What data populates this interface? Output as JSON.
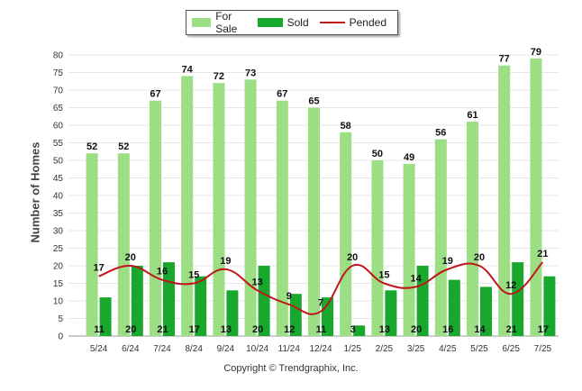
{
  "chart_data": {
    "type": "bar",
    "categories": [
      "5/24",
      "6/24",
      "7/24",
      "8/24",
      "9/24",
      "10/24",
      "11/24",
      "12/24",
      "1/25",
      "2/25",
      "3/25",
      "4/25",
      "5/25",
      "6/25",
      "7/25"
    ],
    "series": [
      {
        "name": "For Sale",
        "type": "bar",
        "color": "#9bde83",
        "values": [
          52,
          52,
          67,
          74,
          72,
          73,
          67,
          65,
          58,
          50,
          49,
          56,
          61,
          77,
          79
        ]
      },
      {
        "name": "Sold",
        "type": "bar",
        "color": "#18a82e",
        "values": [
          11,
          20,
          21,
          17,
          13,
          20,
          12,
          11,
          3,
          13,
          20,
          16,
          14,
          21,
          17
        ]
      },
      {
        "name": "Pended",
        "type": "line",
        "color": "#c0161a",
        "values": [
          17,
          20,
          16,
          15,
          19,
          13,
          9,
          7,
          20,
          15,
          14,
          19,
          20,
          12,
          21
        ]
      }
    ],
    "ylabel": "Number of Homes",
    "ylim": [
      0,
      80
    ],
    "yticks": [
      0,
      5,
      10,
      15,
      20,
      25,
      30,
      35,
      40,
      45,
      50,
      55,
      60,
      65,
      70,
      75,
      80
    ],
    "grid": true,
    "legend_position": "top-center",
    "footer": "Copyright © Trendgraphix, Inc."
  }
}
